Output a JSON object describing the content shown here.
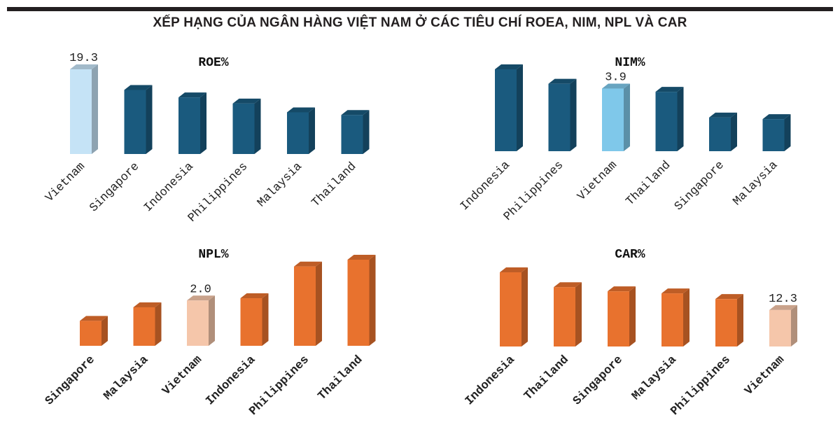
{
  "title": "XẾP HẠNG CỦA NGÂN HÀNG VIỆT NAM Ở CÁC TIÊU CHÍ ROEA, NIM, NPL VÀ CAR",
  "colors": {
    "blue": "#1a5a7e",
    "blue_highlight_roe": "#c5e3f6",
    "blue_highlight_nim": "#7fc8ea",
    "orange": "#e8722e",
    "orange_highlight": "#f5c6aa",
    "rule": "#231f20"
  },
  "chart_data": [
    {
      "type": "bar",
      "title": "ROE%",
      "categories": [
        "Vietnam",
        "Singapore",
        "Indonesia",
        "Philippines",
        "Malaysia",
        "Thailand"
      ],
      "values": [
        19.3,
        14.6,
        12.9,
        11.5,
        9.5,
        8.9
      ],
      "value_labels": [
        "19.3",
        "",
        "",
        "",
        "",
        ""
      ],
      "highlight": "Vietnam",
      "palette": "blue",
      "highlight_color": "blue_highlight_roe",
      "ylim": [
        0,
        19.3
      ]
    },
    {
      "type": "bar",
      "title": "NIM%",
      "categories": [
        "Indonesia",
        "Philippines",
        "Vietnam",
        "Thailand",
        "Singapore",
        "Malaysia"
      ],
      "values": [
        5.1,
        4.2,
        3.9,
        3.7,
        2.1,
        2.0
      ],
      "value_labels": [
        "",
        "",
        "3.9",
        "",
        "",
        ""
      ],
      "highlight": "Vietnam",
      "palette": "blue",
      "highlight_color": "blue_highlight_nim",
      "ylim": [
        0,
        5.1
      ]
    },
    {
      "type": "bar",
      "title": "NPL%",
      "categories": [
        "Singapore",
        "Malaysia",
        "Vietnam",
        "Indonesia",
        "Philippines",
        "Thailand"
      ],
      "values": [
        1.1,
        1.7,
        2.0,
        2.1,
        3.5,
        3.8
      ],
      "value_labels": [
        "",
        "",
        "2.0",
        "",
        "",
        ""
      ],
      "highlight": "Vietnam",
      "palette": "orange",
      "highlight_color": "orange_highlight",
      "ylim": [
        0,
        3.8
      ]
    },
    {
      "type": "bar",
      "title": "CAR%",
      "categories": [
        "Indonesia",
        "Thailand",
        "Singapore",
        "Malaysia",
        "Philippines",
        "Vietnam"
      ],
      "values": [
        25.0,
        20.0,
        18.6,
        17.9,
        16.0,
        12.3
      ],
      "value_labels": [
        "",
        "",
        "",
        "",
        "",
        "12.3"
      ],
      "highlight": "Vietnam",
      "palette": "orange",
      "highlight_color": "orange_highlight",
      "ylim": [
        0,
        25.0
      ]
    }
  ]
}
